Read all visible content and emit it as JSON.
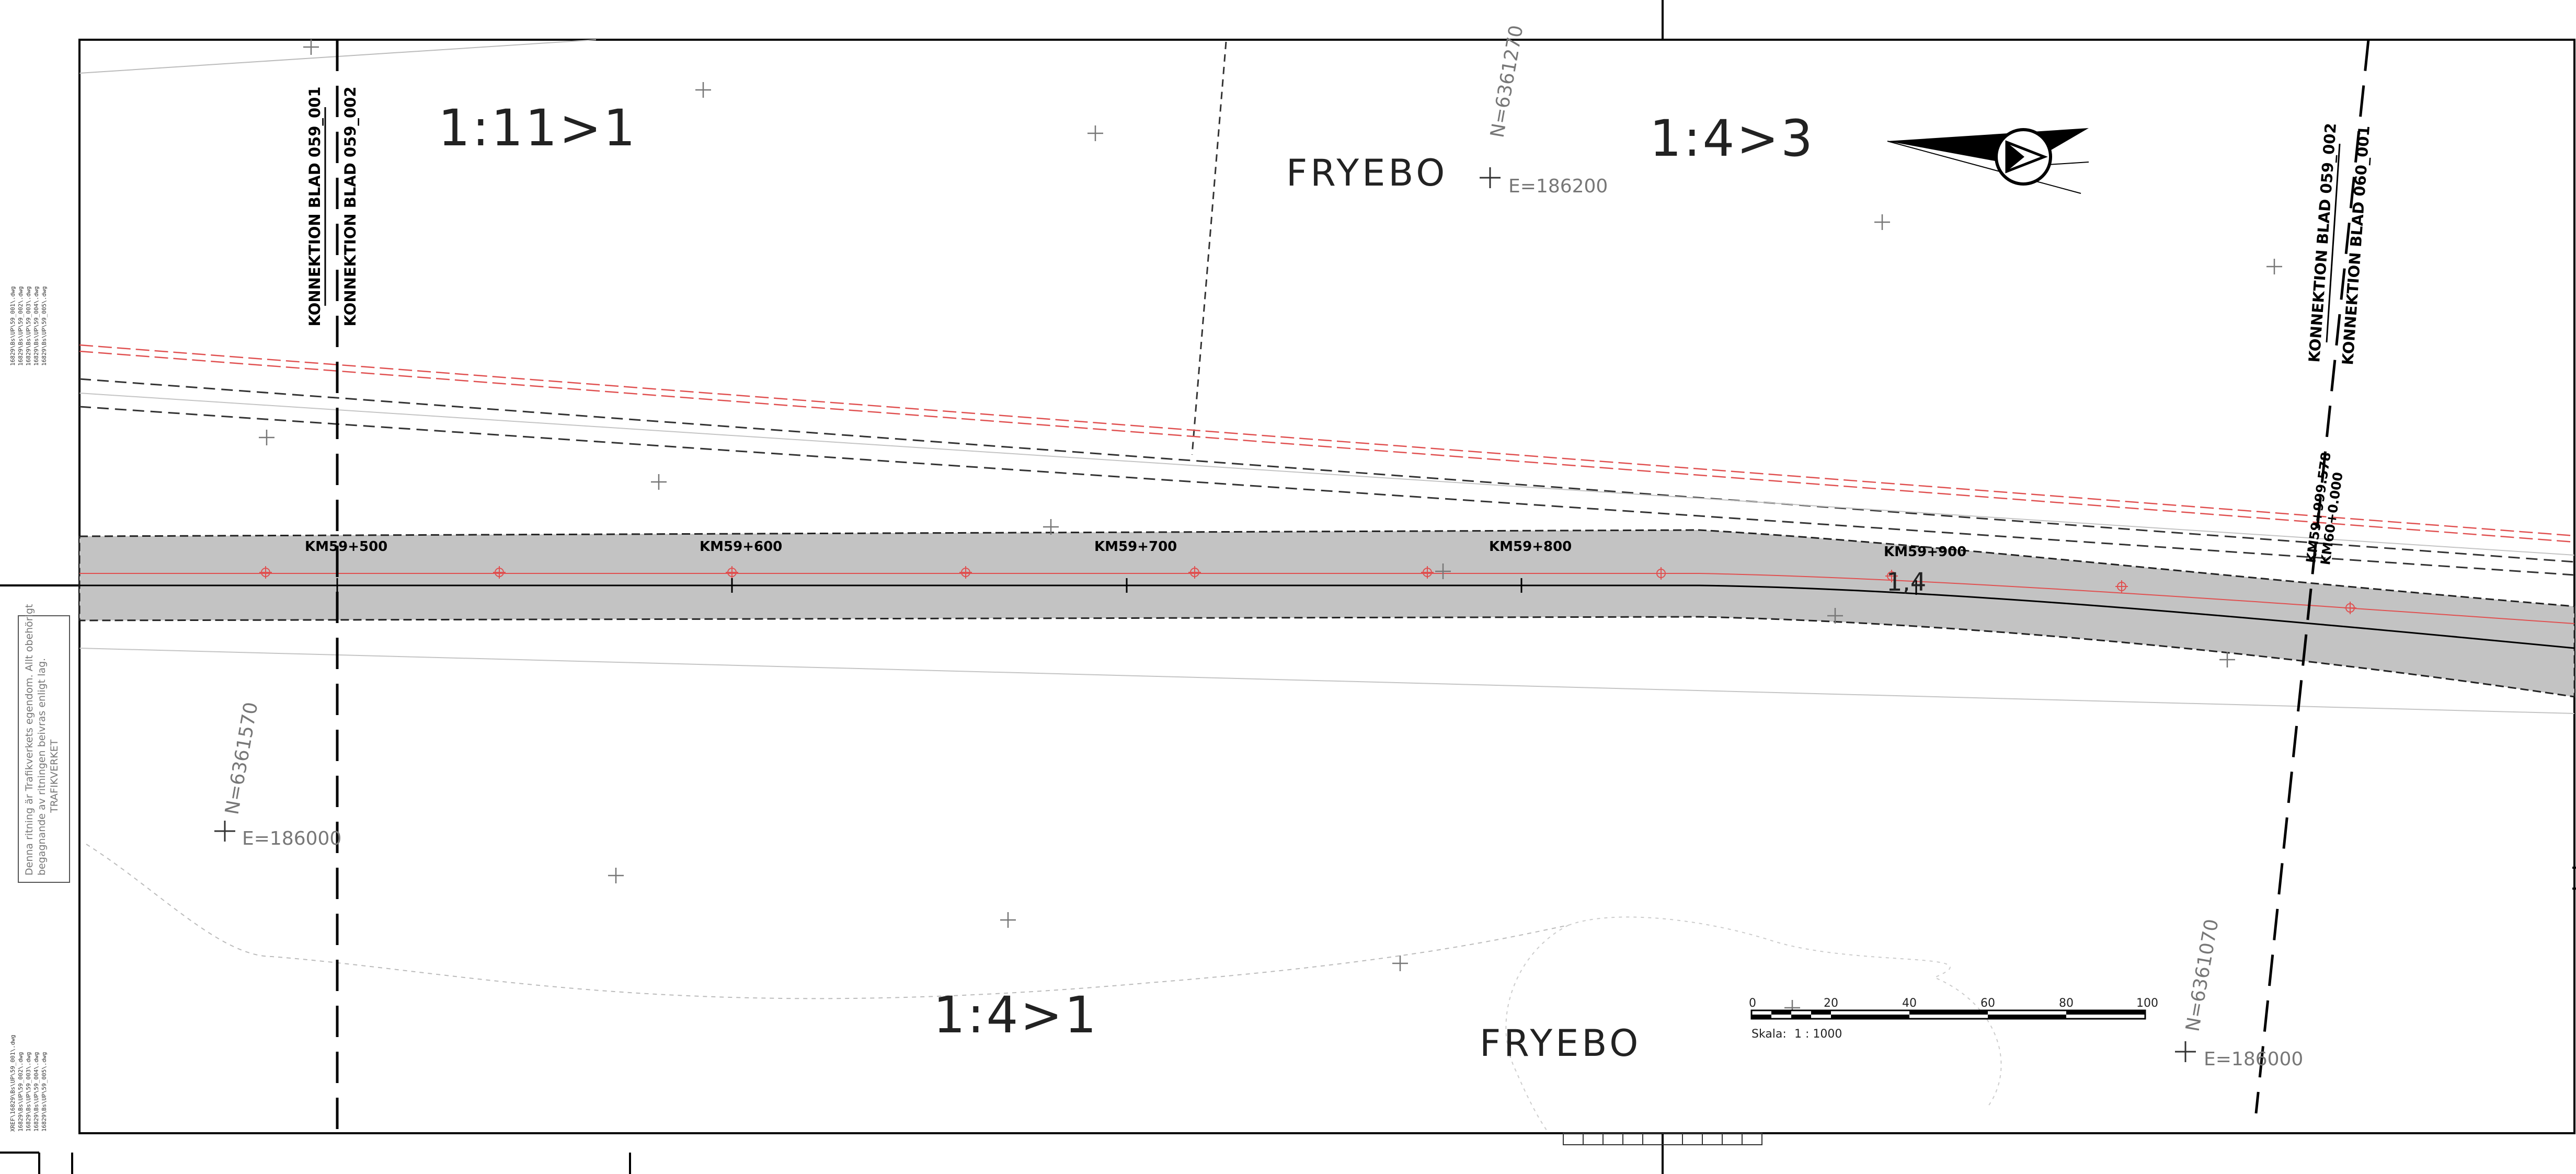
{
  "drawing": {
    "connection_left": {
      "top": "KONNEKTION BLAD 059_001",
      "bottom": "KONNEKTION BLAD 059_002"
    },
    "connection_right": {
      "top": "KONNEKTION BLAD 059_002",
      "bottom": "KONNEKTION BLAD 060_001"
    },
    "place_names": [
      "FRYEBO",
      "FRYEBO"
    ],
    "slope_labels": [
      "1:11>1",
      "1:4>3",
      "1:4>1"
    ],
    "coordinates": [
      {
        "n": "N=6361270",
        "e": "E=186200"
      },
      {
        "n": "N=6361570",
        "e": "E=186000"
      },
      {
        "n": "N=6361070",
        "e": "E=186000"
      }
    ],
    "chainages": [
      "KM59+500",
      "KM59+600",
      "KM59+700",
      "KM59+800",
      "KM59+900"
    ],
    "chainage_end": [
      "KM59+999.578",
      "KM60+0.000"
    ],
    "mark": "1,4",
    "scale_bar": {
      "ticks": [
        "0",
        "20",
        "40",
        "60",
        "80",
        "100"
      ],
      "label": "Skala:",
      "ratio": "1 : 1000"
    },
    "copyright_note": {
      "line1": "Denna ritning är Trafikverkets egendom. Allt obehörigt",
      "line2": "begagnande av ritningen beivras enligt lag.",
      "line3": "TRAFIKVERKET"
    },
    "reference_files_top": [
      "16829\\Bs\\UP\\59_001\\.dwg",
      "16829\\Bs\\UP\\59_002\\.dwg",
      "16829\\Bs\\UP\\59_003\\.dwg",
      "16829\\Bs\\UP\\59_004\\.dwg",
      "16829\\Bs\\UP\\59_005\\.dwg"
    ],
    "reference_files_bottom": [
      "XREF\\16829\\Bs\\UP\\59_001\\.dwg",
      "16829\\Bs\\UP\\59_002\\.dwg",
      "16829\\Bs\\UP\\59_003\\.dwg",
      "16829\\Bs\\UP\\59_004\\.dwg",
      "16829\\Bs\\UP\\59_005\\.dwg"
    ]
  },
  "colors": {
    "road": "#c3c3c3",
    "alignment_red": "#e05050",
    "line": "#000000"
  }
}
